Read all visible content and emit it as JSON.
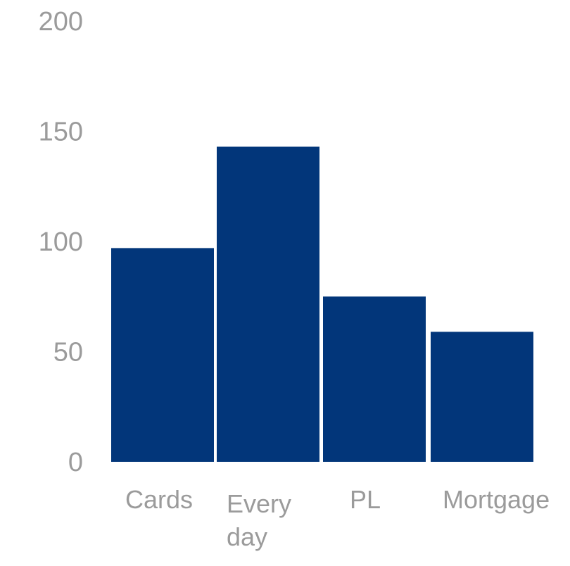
{
  "chart_data": {
    "type": "bar",
    "title": "",
    "xlabel": "",
    "ylabel": "",
    "categories": [
      "Cards",
      "Every day",
      "PL",
      "Mortgage"
    ],
    "category_lines": [
      [
        "Cards"
      ],
      [
        "Every",
        "day"
      ],
      [
        "PL"
      ],
      [
        "Mortgage"
      ]
    ],
    "values": [
      97,
      143,
      75,
      59
    ],
    "ylim": [
      0,
      200
    ],
    "yticks": [
      0,
      50,
      100,
      150,
      200
    ],
    "ytick_labels": [
      "0",
      "50",
      "100",
      "150",
      "200"
    ],
    "grid": false,
    "legend": "none",
    "bar_color": "#02367A",
    "tick_color": "#9B9B9B"
  }
}
